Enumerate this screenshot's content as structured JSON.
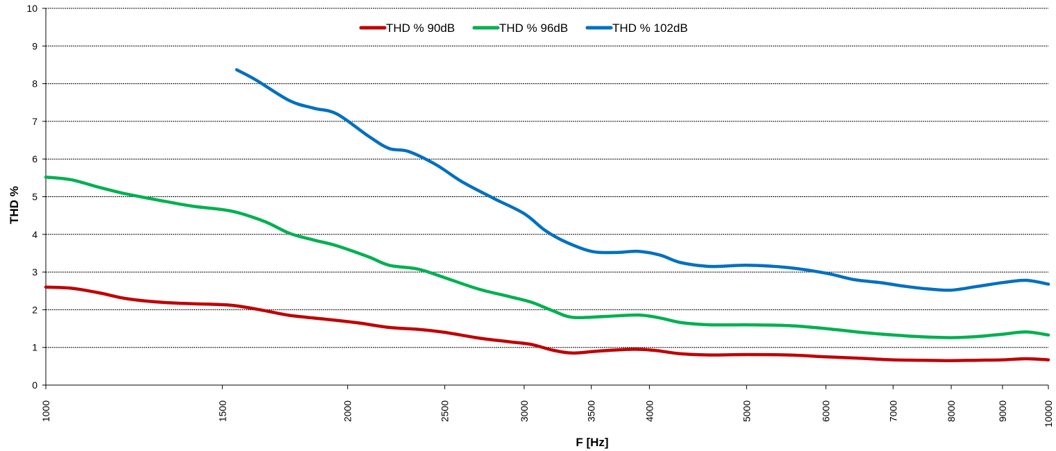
{
  "chart_data": {
    "type": "line",
    "title": "",
    "xlabel": "F [Hz]",
    "ylabel": "THD %",
    "x_scale": "log",
    "xlim": [
      1000,
      10000
    ],
    "ylim": [
      0,
      10
    ],
    "grid": "horizontal",
    "legend_position": "top",
    "x_ticks": [
      1000,
      1500,
      2000,
      2500,
      3000,
      3500,
      4000,
      5000,
      6000,
      7000,
      8000,
      9000,
      10000
    ],
    "x_tick_labels": [
      "1000",
      "1500",
      "2000",
      "2500",
      "3000",
      "3500",
      "4000",
      "5000",
      "6000",
      "7000",
      "8000",
      "9000",
      "10000"
    ],
    "y_ticks": [
      0,
      1,
      2,
      3,
      4,
      5,
      6,
      7,
      8,
      9,
      10
    ],
    "y_tick_labels": [
      "0",
      "1",
      "2",
      "3",
      "4",
      "5",
      "6",
      "7",
      "8",
      "9",
      "10"
    ],
    "series": [
      {
        "name": "THD % 90dB",
        "color": "#c00000",
        "points": [
          [
            1000,
            2.6
          ],
          [
            1060,
            2.57
          ],
          [
            1130,
            2.45
          ],
          [
            1200,
            2.3
          ],
          [
            1300,
            2.2
          ],
          [
            1400,
            2.16
          ],
          [
            1530,
            2.12
          ],
          [
            1650,
            1.98
          ],
          [
            1750,
            1.85
          ],
          [
            1900,
            1.75
          ],
          [
            2050,
            1.65
          ],
          [
            2200,
            1.53
          ],
          [
            2350,
            1.48
          ],
          [
            2500,
            1.4
          ],
          [
            2700,
            1.25
          ],
          [
            2900,
            1.15
          ],
          [
            3050,
            1.08
          ],
          [
            3200,
            0.93
          ],
          [
            3350,
            0.85
          ],
          [
            3550,
            0.9
          ],
          [
            3850,
            0.95
          ],
          [
            4050,
            0.92
          ],
          [
            4300,
            0.83
          ],
          [
            4600,
            0.8
          ],
          [
            5000,
            0.81
          ],
          [
            5500,
            0.8
          ],
          [
            6000,
            0.75
          ],
          [
            6500,
            0.71
          ],
          [
            7000,
            0.67
          ],
          [
            7500,
            0.66
          ],
          [
            8000,
            0.65
          ],
          [
            8500,
            0.66
          ],
          [
            9000,
            0.67
          ],
          [
            9500,
            0.7
          ],
          [
            10000,
            0.67
          ]
        ]
      },
      {
        "name": "THD % 96dB",
        "color": "#00b050",
        "points": [
          [
            1000,
            5.52
          ],
          [
            1060,
            5.45
          ],
          [
            1130,
            5.25
          ],
          [
            1200,
            5.08
          ],
          [
            1300,
            4.9
          ],
          [
            1400,
            4.75
          ],
          [
            1530,
            4.62
          ],
          [
            1650,
            4.35
          ],
          [
            1750,
            4.03
          ],
          [
            1850,
            3.85
          ],
          [
            1950,
            3.7
          ],
          [
            2100,
            3.4
          ],
          [
            2200,
            3.18
          ],
          [
            2350,
            3.08
          ],
          [
            2500,
            2.85
          ],
          [
            2700,
            2.55
          ],
          [
            2900,
            2.35
          ],
          [
            3050,
            2.2
          ],
          [
            3200,
            1.98
          ],
          [
            3350,
            1.8
          ],
          [
            3600,
            1.82
          ],
          [
            3900,
            1.86
          ],
          [
            4100,
            1.78
          ],
          [
            4300,
            1.66
          ],
          [
            4600,
            1.6
          ],
          [
            5000,
            1.6
          ],
          [
            5500,
            1.58
          ],
          [
            6000,
            1.5
          ],
          [
            6500,
            1.4
          ],
          [
            7000,
            1.33
          ],
          [
            7500,
            1.28
          ],
          [
            8000,
            1.26
          ],
          [
            8500,
            1.29
          ],
          [
            9000,
            1.35
          ],
          [
            9500,
            1.41
          ],
          [
            10000,
            1.33
          ]
        ]
      },
      {
        "name": "THD % 102dB",
        "color": "#0070c0",
        "points": [
          [
            1550,
            8.37
          ],
          [
            1620,
            8.1
          ],
          [
            1750,
            7.55
          ],
          [
            1850,
            7.35
          ],
          [
            1950,
            7.2
          ],
          [
            2100,
            6.6
          ],
          [
            2200,
            6.28
          ],
          [
            2300,
            6.2
          ],
          [
            2450,
            5.85
          ],
          [
            2600,
            5.4
          ],
          [
            2800,
            4.95
          ],
          [
            3000,
            4.55
          ],
          [
            3150,
            4.1
          ],
          [
            3300,
            3.8
          ],
          [
            3500,
            3.55
          ],
          [
            3700,
            3.52
          ],
          [
            3900,
            3.55
          ],
          [
            4100,
            3.45
          ],
          [
            4300,
            3.25
          ],
          [
            4600,
            3.15
          ],
          [
            5000,
            3.18
          ],
          [
            5500,
            3.12
          ],
          [
            6000,
            2.97
          ],
          [
            6400,
            2.8
          ],
          [
            6800,
            2.72
          ],
          [
            7200,
            2.62
          ],
          [
            7600,
            2.55
          ],
          [
            8000,
            2.52
          ],
          [
            8500,
            2.62
          ],
          [
            9000,
            2.72
          ],
          [
            9500,
            2.78
          ],
          [
            10000,
            2.68
          ]
        ]
      }
    ]
  }
}
